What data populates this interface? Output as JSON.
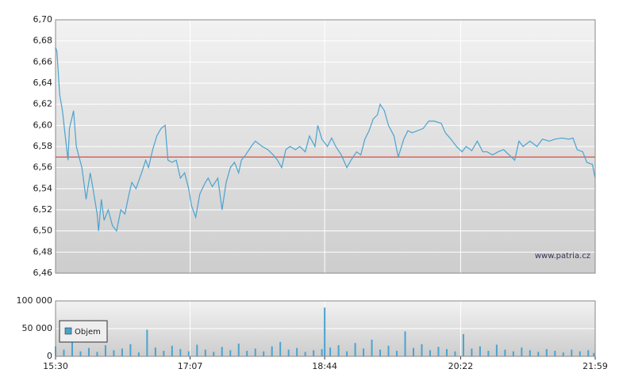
{
  "chart_data": [
    {
      "type": "line",
      "annotation": "www.patria.cz",
      "xlim": [
        "15:30",
        "21:59"
      ],
      "ylim": [
        6.46,
        6.7
      ],
      "yticks": [
        {
          "value": 6.46,
          "label": "6,46"
        },
        {
          "value": 6.48,
          "label": "6,48"
        },
        {
          "value": 6.5,
          "label": "6,50"
        },
        {
          "value": 6.52,
          "label": "6,52"
        },
        {
          "value": 6.54,
          "label": "6,54"
        },
        {
          "value": 6.56,
          "label": "6,56"
        },
        {
          "value": 6.58,
          "label": "6,58"
        },
        {
          "value": 6.6,
          "label": "6,60"
        },
        {
          "value": 6.62,
          "label": "6,62"
        },
        {
          "value": 6.64,
          "label": "6,64"
        },
        {
          "value": 6.66,
          "label": "6,66"
        },
        {
          "value": 6.68,
          "label": "6,68"
        },
        {
          "value": 6.7,
          "label": "6,70"
        }
      ],
      "grid": true,
      "reference_line": {
        "value": 6.57,
        "color": "#e03a2e"
      },
      "x": [
        "15:30",
        "15:31",
        "15:33",
        "15:35",
        "15:37",
        "15:39",
        "15:40",
        "15:43",
        "15:45",
        "15:49",
        "15:52",
        "15:55",
        "15:57",
        "16:00",
        "16:01",
        "16:03",
        "16:05",
        "16:08",
        "16:11",
        "16:14",
        "16:17",
        "16:20",
        "16:23",
        "16:25",
        "16:28",
        "16:32",
        "16:35",
        "16:37",
        "16:40",
        "16:43",
        "16:46",
        "16:49",
        "16:51",
        "16:54",
        "16:57",
        "17:00",
        "17:03",
        "17:06",
        "17:08",
        "17:11",
        "17:14",
        "17:18",
        "17:20",
        "17:23",
        "17:27",
        "17:30",
        "17:33",
        "17:36",
        "17:39",
        "17:42",
        "17:44",
        "17:47",
        "17:51",
        "17:54",
        "17:59",
        "18:03",
        "18:07",
        "18:10",
        "18:13",
        "18:16",
        "18:19",
        "18:23",
        "18:26",
        "18:30",
        "18:33",
        "18:37",
        "18:39",
        "18:42",
        "18:46",
        "18:49",
        "18:52",
        "18:56",
        "19:00",
        "19:03",
        "19:07",
        "19:10",
        "19:13",
        "19:16",
        "19:19",
        "19:22",
        "19:24",
        "19:27",
        "19:30",
        "19:34",
        "19:37",
        "19:41",
        "19:44",
        "19:47",
        "19:51",
        "19:55",
        "19:59",
        "20:03",
        "20:08",
        "20:11",
        "20:15",
        "20:19",
        "20:23",
        "20:26",
        "20:30",
        "20:34",
        "20:38",
        "20:41",
        "20:45",
        "20:49",
        "20:53",
        "20:57",
        "21:01",
        "21:04",
        "21:07",
        "21:12",
        "21:17",
        "21:21",
        "21:26",
        "21:30",
        "21:35",
        "21:40",
        "21:43",
        "21:46",
        "21:50",
        "21:53",
        "21:57",
        "21:59"
      ],
      "series": [
        {
          "color": "#4aa3cf",
          "values": [
            6.674,
            6.67,
            6.629,
            6.614,
            6.59,
            6.567,
            6.597,
            6.614,
            6.58,
            6.56,
            6.53,
            6.555,
            6.54,
            6.516,
            6.5,
            6.53,
            6.51,
            6.52,
            6.505,
            6.5,
            6.52,
            6.516,
            6.535,
            6.546,
            6.54,
            6.555,
            6.567,
            6.56,
            6.577,
            6.59,
            6.597,
            6.6,
            6.567,
            6.565,
            6.567,
            6.55,
            6.555,
            6.54,
            6.524,
            6.513,
            6.535,
            6.546,
            6.55,
            6.542,
            6.55,
            6.52,
            6.546,
            6.56,
            6.565,
            6.555,
            6.567,
            6.572,
            6.58,
            6.585,
            6.58,
            6.577,
            6.572,
            6.567,
            6.56,
            6.577,
            6.58,
            6.577,
            6.58,
            6.575,
            6.59,
            6.58,
            6.6,
            6.587,
            6.58,
            6.588,
            6.58,
            6.572,
            6.56,
            6.567,
            6.575,
            6.572,
            6.587,
            6.595,
            6.606,
            6.61,
            6.62,
            6.614,
            6.6,
            6.59,
            6.57,
            6.587,
            6.595,
            6.593,
            6.595,
            6.597,
            6.604,
            6.604,
            6.602,
            6.593,
            6.587,
            6.58,
            6.575,
            6.58,
            6.576,
            6.585,
            6.575,
            6.575,
            6.572,
            6.575,
            6.577,
            6.572,
            6.567,
            6.585,
            6.58,
            6.585,
            6.58,
            6.587,
            6.585,
            6.587,
            6.588,
            6.587,
            6.588,
            6.577,
            6.575,
            6.565,
            6.563,
            6.55
          ]
        }
      ]
    },
    {
      "type": "bar",
      "xlim": [
        "15:30",
        "21:59"
      ],
      "xticks": [
        "15:30",
        "17:07",
        "18:44",
        "20:22",
        "21:59"
      ],
      "ylim": [
        0,
        100000
      ],
      "yticks": [
        0,
        {
          "value": 50000,
          "label": "50 000"
        },
        {
          "value": 100000,
          "label": "100 000"
        }
      ],
      "grid": true,
      "legend": "bottom-left",
      "x": [
        "15:30",
        "15:36",
        "15:42",
        "15:48",
        "15:54",
        "16:00",
        "16:06",
        "16:12",
        "16:18",
        "16:24",
        "16:30",
        "16:36",
        "16:42",
        "16:48",
        "16:54",
        "17:00",
        "17:06",
        "17:12",
        "17:18",
        "17:24",
        "17:30",
        "17:36",
        "17:42",
        "17:48",
        "17:54",
        "18:00",
        "18:06",
        "18:12",
        "18:18",
        "18:24",
        "18:30",
        "18:36",
        "18:42",
        "18:44",
        "18:48",
        "18:54",
        "19:00",
        "19:06",
        "19:12",
        "19:18",
        "19:24",
        "19:30",
        "19:36",
        "19:42",
        "19:48",
        "19:54",
        "20:00",
        "20:06",
        "20:12",
        "20:18",
        "20:24",
        "20:30",
        "20:36",
        "20:42",
        "20:48",
        "20:54",
        "21:00",
        "21:06",
        "21:12",
        "21:18",
        "21:24",
        "21:30",
        "21:36",
        "21:42",
        "21:48",
        "21:54",
        "21:58"
      ],
      "series": [
        {
          "name": "Objem",
          "color": "#4aa3cf",
          "values": [
            18000,
            12000,
            25000,
            9000,
            15000,
            8000,
            20000,
            11000,
            14000,
            22000,
            7000,
            48000,
            16000,
            10000,
            19000,
            13000,
            9000,
            21000,
            12000,
            8000,
            17000,
            11000,
            23000,
            10000,
            14000,
            9000,
            18000,
            26000,
            12000,
            15000,
            8000,
            11000,
            13000,
            88000,
            16000,
            20000,
            9000,
            24000,
            14000,
            30000,
            12000,
            19000,
            10000,
            45000,
            15000,
            22000,
            11000,
            17000,
            13000,
            9000,
            40000,
            14000,
            18000,
            10000,
            21000,
            12000,
            9000,
            16000,
            11000,
            8000,
            13000,
            10000,
            7000,
            12000,
            9000,
            11000,
            6000
          ]
        }
      ]
    }
  ]
}
